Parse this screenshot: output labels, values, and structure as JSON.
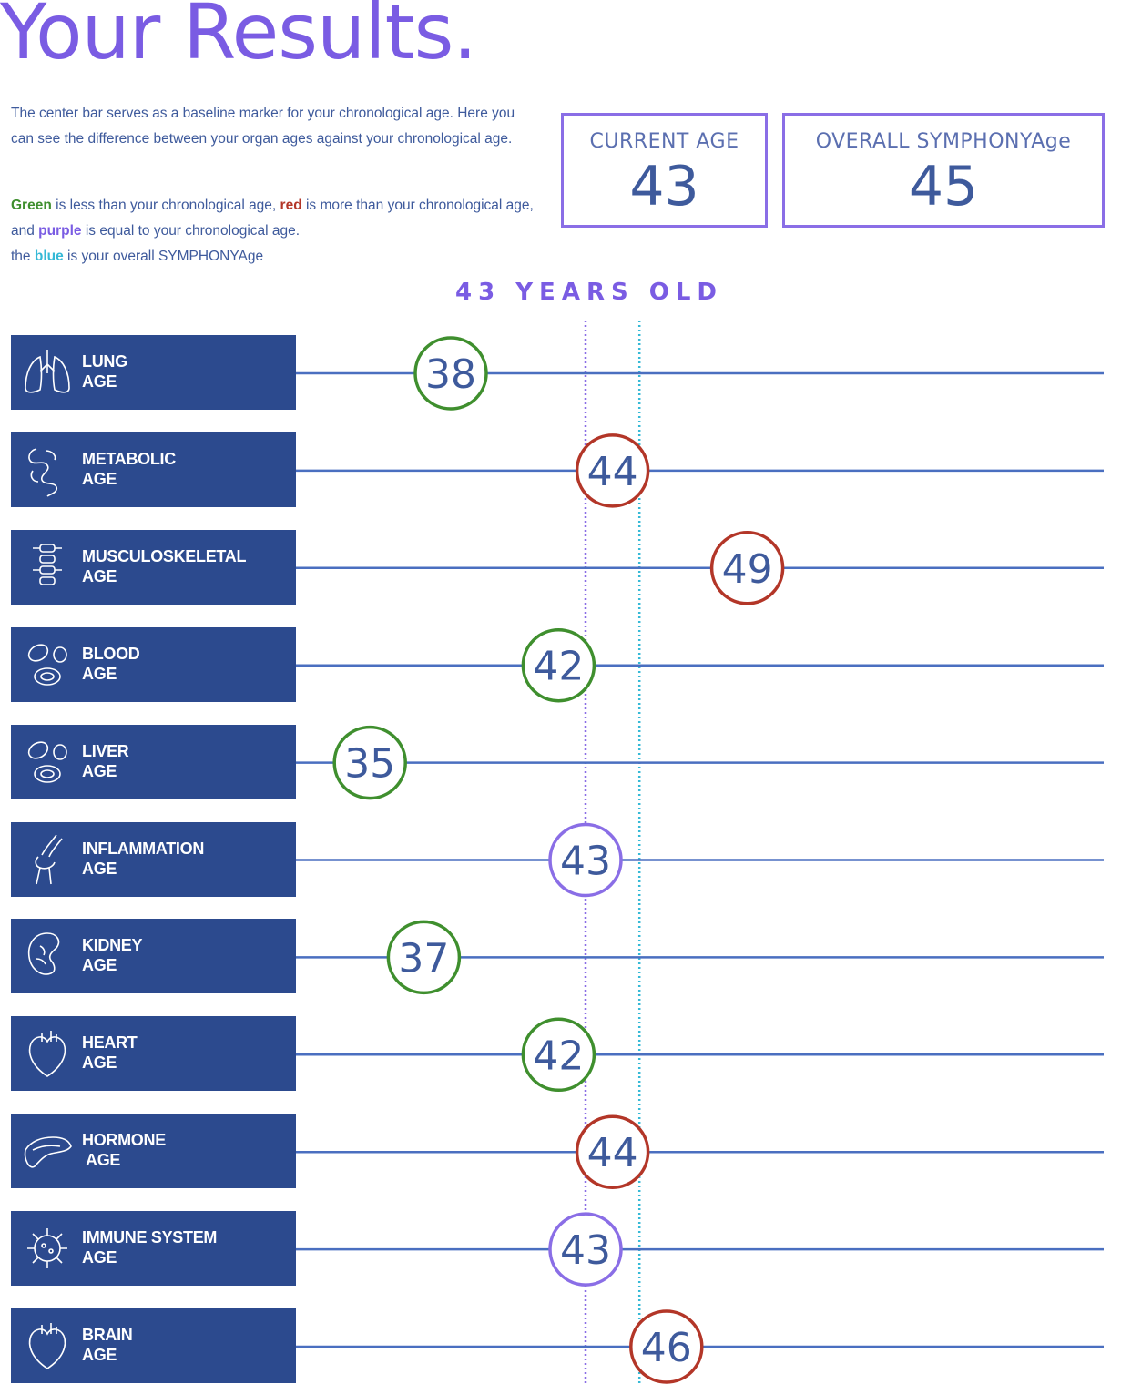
{
  "page": {
    "title": "Your Results.",
    "description_1": "The center bar serves as a baseline marker for your chronological age. Here you can see the difference between your organ ages against your chronological age.",
    "legend_text": {
      "green_word": "Green",
      "green_rest": " is less than your chronological age, ",
      "red_word": "red",
      "red_rest": " is more than your chronological age, and ",
      "purple_word": "purple",
      "purple_rest": " is equal to your chronological age.",
      "blue_pre": "the ",
      "blue_word": "blue",
      "blue_rest": " is your overall SYMPHONYAge"
    },
    "current_age": {
      "label": "CURRENT AGE",
      "value": "43"
    },
    "overall_age": {
      "label": "OVERALL SYMPHONYAge",
      "value": "45"
    },
    "baseline_label": "43 YEARS OLD"
  },
  "colors": {
    "title": "#7a5ce3",
    "label_bg": "#2c4a8e",
    "line": "#4a6fc0",
    "green": "#3f8f2e",
    "red": "#b33628",
    "purple": "#8a6ee6",
    "blue": "#35b9d6",
    "value_text": "#3e5a9c"
  },
  "chart_data": {
    "type": "dot-plot",
    "chronological_age": 43,
    "overall_age": 45,
    "rows": [
      {
        "label": "LUNG\nAGE",
        "value": 38,
        "status": "green",
        "icon": "lungs-icon"
      },
      {
        "label": "METABOLIC\nAGE",
        "value": 44,
        "status": "red",
        "icon": "intestine-icon"
      },
      {
        "label": "MUSCULOSKELETAL\nAGE",
        "value": 49,
        "status": "red",
        "icon": "spine-icon"
      },
      {
        "label": "BLOOD\nAGE",
        "value": 42,
        "status": "green",
        "icon": "blood-cells-icon"
      },
      {
        "label": "LIVER\nAGE",
        "value": 35,
        "status": "green",
        "icon": "blood-cells-icon"
      },
      {
        "label": "INFLAMMATION\nAGE",
        "value": 43,
        "status": "purple",
        "icon": "knee-joint-icon"
      },
      {
        "label": "KIDNEY\nAGE",
        "value": 37,
        "status": "green",
        "icon": "kidney-icon"
      },
      {
        "label": "HEART\nAGE",
        "value": 42,
        "status": "green",
        "icon": "heart-icon"
      },
      {
        "label": "HORMONE\n AGE",
        "value": 44,
        "status": "red",
        "icon": "pancreas-icon"
      },
      {
        "label": "IMMUNE SYSTEM\nAGE",
        "value": 43,
        "status": "purple",
        "icon": "virus-icon"
      },
      {
        "label": "BRAIN\nAGE",
        "value": 46,
        "status": "red",
        "icon": "heart-icon"
      }
    ]
  }
}
